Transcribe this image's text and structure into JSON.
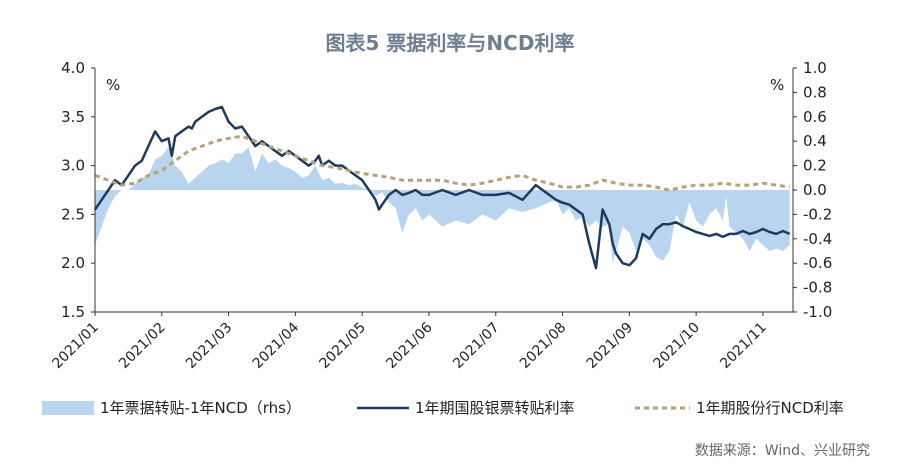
{
  "chart_data": {
    "type": "line",
    "title": "图表5 票据利率与NCD利率",
    "left_unit": "%",
    "right_unit": "%",
    "ylim": [
      1.5,
      4.0
    ],
    "yticks": [
      "4.0",
      "3.5",
      "3.0",
      "2.5",
      "2.0",
      "1.5"
    ],
    "y2lim": [
      -1.0,
      1.0
    ],
    "y2ticks": [
      "1.0",
      "0.8",
      "0.6",
      "0.4",
      "0.2",
      "0.0",
      "-0.2",
      "-0.4",
      "-0.6",
      "-0.8",
      "-1.0"
    ],
    "xlim": [
      0,
      10.45
    ],
    "xticks": [
      "2021/01",
      "2021/02",
      "2021/03",
      "2021/04",
      "2021/05",
      "2021/06",
      "2021/07",
      "2021/08",
      "2021/09",
      "2021/10",
      "2021/11"
    ],
    "grid": false,
    "legend_position": "bottom",
    "source": "数据来源：Wind、兴业研究",
    "series": [
      {
        "name": "1年票据转贴-1年NCD（rhs）",
        "axis": "right",
        "style": "area",
        "color": "#b8d4ee",
        "x": [
          0,
          0.1,
          0.2,
          0.3,
          0.4,
          0.5,
          0.6,
          0.7,
          0.8,
          0.9,
          1.0,
          1.1,
          1.2,
          1.3,
          1.4,
          1.5,
          1.6,
          1.7,
          1.8,
          1.9,
          2.0,
          2.1,
          2.2,
          2.3,
          2.4,
          2.5,
          2.6,
          2.7,
          2.8,
          2.9,
          3.0,
          3.1,
          3.2,
          3.3,
          3.4,
          3.5,
          3.6,
          3.7,
          3.8,
          3.9,
          4.0,
          4.1,
          4.2,
          4.3,
          4.4,
          4.5,
          4.6,
          4.7,
          4.8,
          4.9,
          5.0,
          5.2,
          5.4,
          5.6,
          5.8,
          6.0,
          6.2,
          6.4,
          6.6,
          6.8,
          6.9,
          7.0,
          7.1,
          7.2,
          7.3,
          7.4,
          7.5,
          7.6,
          7.7,
          7.75,
          7.9,
          8.0,
          8.1,
          8.2,
          8.3,
          8.4,
          8.5,
          8.6,
          8.7,
          8.8,
          8.9,
          9.0,
          9.1,
          9.2,
          9.3,
          9.4,
          9.45,
          9.5,
          9.6,
          9.7,
          9.8,
          9.9,
          10.0,
          10.1,
          10.2,
          10.3,
          10.4
        ],
        "values": [
          -0.45,
          -0.3,
          -0.15,
          -0.05,
          0.0,
          0.0,
          0.05,
          0.1,
          0.12,
          0.25,
          0.28,
          0.35,
          0.2,
          0.15,
          0.05,
          0.1,
          0.15,
          0.2,
          0.22,
          0.25,
          0.22,
          0.3,
          0.3,
          0.35,
          0.15,
          0.3,
          0.22,
          0.25,
          0.2,
          0.18,
          0.15,
          0.1,
          0.12,
          0.2,
          0.08,
          0.1,
          0.05,
          0.06,
          0.04,
          0.05,
          0.02,
          0.0,
          -0.05,
          -0.02,
          -0.1,
          -0.15,
          -0.35,
          -0.2,
          -0.15,
          -0.25,
          -0.2,
          -0.3,
          -0.25,
          -0.28,
          -0.2,
          -0.25,
          -0.15,
          -0.18,
          -0.15,
          -0.1,
          -0.08,
          -0.2,
          -0.15,
          -0.25,
          -0.22,
          -0.3,
          -0.25,
          -0.3,
          -0.28,
          -0.6,
          -0.3,
          -0.35,
          -0.5,
          -0.4,
          -0.45,
          -0.55,
          -0.58,
          -0.5,
          -0.2,
          -0.3,
          -0.1,
          -0.25,
          -0.3,
          -0.2,
          -0.15,
          -0.25,
          -0.05,
          -0.3,
          -0.35,
          -0.4,
          -0.5,
          -0.4,
          -0.45,
          -0.5,
          -0.48,
          -0.5,
          -0.45
        ]
      },
      {
        "name": "1年期国股银票转贴利率",
        "axis": "left",
        "style": "line",
        "color": "#1f3a5f",
        "x": [
          0,
          0.1,
          0.2,
          0.3,
          0.4,
          0.5,
          0.6,
          0.7,
          0.8,
          0.9,
          1.0,
          1.1,
          1.15,
          1.2,
          1.3,
          1.4,
          1.45,
          1.5,
          1.6,
          1.7,
          1.8,
          1.9,
          2.0,
          2.1,
          2.2,
          2.3,
          2.35,
          2.4,
          2.5,
          2.6,
          2.7,
          2.8,
          2.9,
          3.0,
          3.1,
          3.2,
          3.3,
          3.35,
          3.4,
          3.5,
          3.6,
          3.7,
          3.8,
          3.9,
          4.0,
          4.1,
          4.2,
          4.25,
          4.3,
          4.4,
          4.5,
          4.6,
          4.7,
          4.8,
          4.9,
          5.0,
          5.2,
          5.4,
          5.6,
          5.8,
          6.0,
          6.2,
          6.4,
          6.6,
          6.8,
          6.9,
          7.0,
          7.1,
          7.2,
          7.3,
          7.4,
          7.5,
          7.6,
          7.7,
          7.75,
          7.8,
          7.9,
          8.0,
          8.1,
          8.2,
          8.3,
          8.4,
          8.5,
          8.6,
          8.7,
          8.8,
          8.9,
          9.0,
          9.1,
          9.2,
          9.3,
          9.4,
          9.5,
          9.6,
          9.7,
          9.8,
          9.9,
          10.0,
          10.1,
          10.2,
          10.3,
          10.4
        ],
        "values": [
          2.55,
          2.65,
          2.75,
          2.85,
          2.8,
          2.9,
          3.0,
          3.05,
          3.2,
          3.35,
          3.25,
          3.28,
          3.1,
          3.3,
          3.35,
          3.4,
          3.38,
          3.45,
          3.5,
          3.55,
          3.58,
          3.6,
          3.45,
          3.38,
          3.4,
          3.3,
          3.25,
          3.2,
          3.25,
          3.2,
          3.15,
          3.1,
          3.15,
          3.1,
          3.05,
          3.0,
          3.05,
          3.1,
          3.0,
          3.05,
          3.0,
          3.0,
          2.95,
          2.9,
          2.85,
          2.75,
          2.65,
          2.55,
          2.6,
          2.7,
          2.75,
          2.7,
          2.72,
          2.75,
          2.7,
          2.7,
          2.75,
          2.7,
          2.75,
          2.7,
          2.7,
          2.72,
          2.65,
          2.8,
          2.7,
          2.65,
          2.62,
          2.6,
          2.55,
          2.5,
          2.2,
          1.95,
          2.55,
          2.4,
          2.2,
          2.1,
          2.0,
          1.98,
          2.05,
          2.3,
          2.25,
          2.35,
          2.4,
          2.4,
          2.42,
          2.38,
          2.35,
          2.32,
          2.3,
          2.28,
          2.3,
          2.27,
          2.3,
          2.3,
          2.33,
          2.3,
          2.32,
          2.35,
          2.32,
          2.3,
          2.33,
          2.3
        ]
      },
      {
        "name": "1年期股份行NCD利率",
        "axis": "left",
        "style": "dashed",
        "color": "#b5a27a",
        "x": [
          0,
          0.2,
          0.4,
          0.6,
          0.8,
          1.0,
          1.2,
          1.4,
          1.6,
          1.8,
          2.0,
          2.2,
          2.4,
          2.6,
          2.8,
          3.0,
          3.2,
          3.4,
          3.6,
          3.8,
          4.0,
          4.2,
          4.4,
          4.6,
          4.8,
          5.0,
          5.2,
          5.4,
          5.6,
          5.8,
          6.0,
          6.2,
          6.4,
          6.6,
          6.8,
          7.0,
          7.2,
          7.4,
          7.6,
          7.8,
          8.0,
          8.2,
          8.4,
          8.6,
          8.8,
          9.0,
          9.2,
          9.4,
          9.6,
          9.8,
          10.0,
          10.2,
          10.4
        ],
        "values": [
          2.9,
          2.85,
          2.8,
          2.82,
          2.9,
          2.95,
          3.05,
          3.15,
          3.2,
          3.25,
          3.28,
          3.3,
          3.25,
          3.2,
          3.15,
          3.1,
          3.05,
          3.0,
          2.98,
          2.95,
          2.92,
          2.9,
          2.88,
          2.85,
          2.85,
          2.85,
          2.85,
          2.82,
          2.8,
          2.82,
          2.85,
          2.88,
          2.9,
          2.85,
          2.82,
          2.78,
          2.78,
          2.8,
          2.85,
          2.82,
          2.8,
          2.8,
          2.78,
          2.75,
          2.78,
          2.8,
          2.8,
          2.82,
          2.8,
          2.8,
          2.82,
          2.8,
          2.78
        ]
      }
    ]
  }
}
